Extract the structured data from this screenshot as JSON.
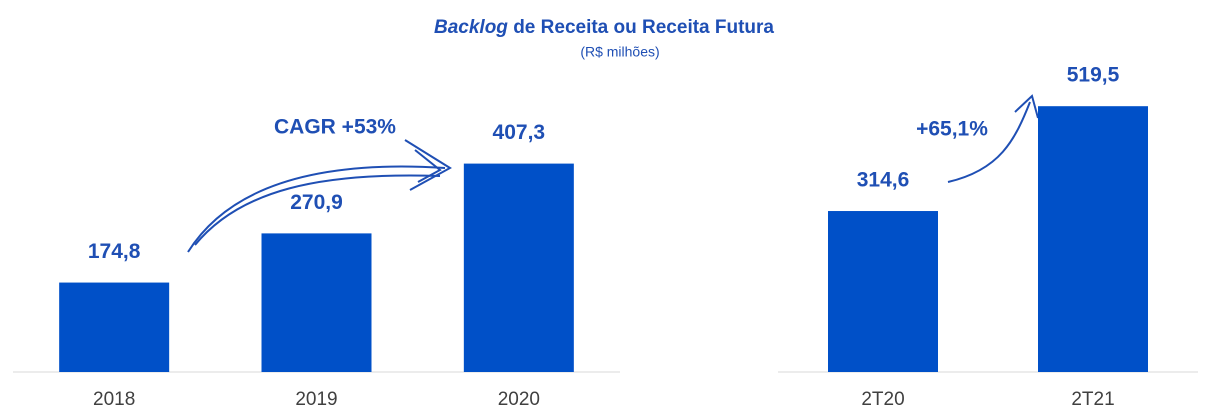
{
  "header": {
    "title_italic": "Backlog",
    "title": "de Receita ou Receita Futura",
    "subtitle": "(R$ milhões)"
  },
  "chart_data": [
    {
      "type": "bar",
      "categories": [
        "2018",
        "2019",
        "2020"
      ],
      "values": [
        174.8,
        270.9,
        407.3
      ],
      "value_labels": [
        "174,8",
        "270,9",
        "407,3"
      ],
      "color": "#0050c8",
      "ylim": [
        0,
        600
      ],
      "annotation": "CAGR +53%"
    },
    {
      "type": "bar",
      "categories": [
        "2T20",
        "2T21"
      ],
      "values": [
        314.6,
        519.5
      ],
      "value_labels": [
        "314,6",
        "519,5"
      ],
      "color": "#0050c8",
      "ylim": [
        0,
        600
      ],
      "annotation": "+65,1%"
    }
  ]
}
